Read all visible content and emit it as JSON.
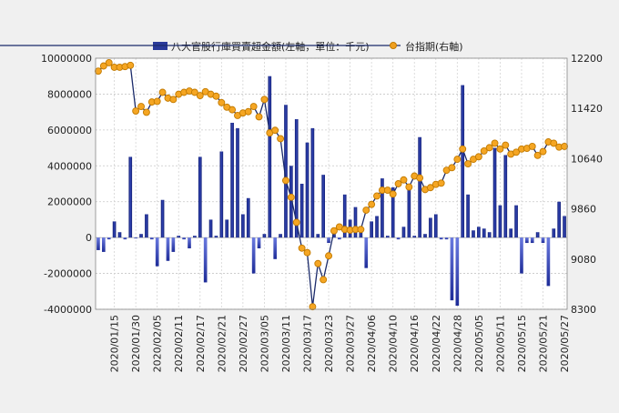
{
  "chart_data": {
    "type": "bar+line",
    "legend": [
      {
        "label": "八大官股行庫買賣超金額(左軸，單位：千元)",
        "kind": "bar",
        "color": "#2a3a9a"
      },
      {
        "label": "台指期(右軸)",
        "kind": "line",
        "color": "#f0a020"
      }
    ],
    "legend_position": "top",
    "grid": true,
    "y_left": {
      "min": -4000000,
      "max": 10000000,
      "ticks": [
        -4000000,
        -2000000,
        0,
        2000000,
        4000000,
        6000000,
        8000000,
        10000000
      ]
    },
    "y_right": {
      "min": 8300,
      "max": 12200,
      "ticks": [
        8300,
        9080,
        9860,
        10640,
        11420,
        12200
      ]
    },
    "x_tick_labels": [
      {
        "index": 3,
        "label": "2020/01/15"
      },
      {
        "index": 7,
        "label": "2020/01/30"
      },
      {
        "index": 11,
        "label": "2020/02/05"
      },
      {
        "index": 15,
        "label": "2020/02/11"
      },
      {
        "index": 19,
        "label": "2020/02/17"
      },
      {
        "index": 23,
        "label": "2020/02/21"
      },
      {
        "index": 27,
        "label": "2020/02/27"
      },
      {
        "index": 31,
        "label": "2020/03/05"
      },
      {
        "index": 35,
        "label": "2020/03/11"
      },
      {
        "index": 39,
        "label": "2020/03/17"
      },
      {
        "index": 43,
        "label": "2020/03/23"
      },
      {
        "index": 47,
        "label": "2020/03/27"
      },
      {
        "index": 51,
        "label": "2020/04/06"
      },
      {
        "index": 55,
        "label": "2020/04/10"
      },
      {
        "index": 59,
        "label": "2020/04/16"
      },
      {
        "index": 63,
        "label": "2020/04/22"
      },
      {
        "index": 67,
        "label": "2020/04/28"
      },
      {
        "index": 71,
        "label": "2020/05/05"
      },
      {
        "index": 75,
        "label": "2020/05/11"
      },
      {
        "index": 79,
        "label": "2020/05/15"
      },
      {
        "index": 83,
        "label": "2020/05/21"
      },
      {
        "index": 87,
        "label": "2020/05/27"
      }
    ],
    "bars": [
      -700000,
      -800000,
      -100000,
      900000,
      300000,
      -100000,
      4500000,
      -50000,
      200000,
      1300000,
      -100000,
      -1600000,
      2100000,
      -1300000,
      -800000,
      100000,
      -100000,
      -600000,
      100000,
      4500000,
      -2500000,
      1000000,
      100000,
      4800000,
      1000000,
      6400000,
      6100000,
      1300000,
      2200000,
      -2000000,
      -600000,
      200000,
      9000000,
      -1200000,
      200000,
      7400000,
      4000000,
      6600000,
      3000000,
      5300000,
      6100000,
      200000,
      3500000,
      -300000,
      200000,
      -100000,
      2400000,
      1000000,
      1700000,
      600000,
      -1700000,
      900000,
      1200000,
      3300000,
      100000,
      2800000,
      -100000,
      600000,
      3000000,
      100000,
      5600000,
      200000,
      1100000,
      1300000,
      -100000,
      -100000,
      -3500000,
      -3800000,
      8500000,
      2400000,
      400000,
      600000,
      500000,
      300000,
      5000000,
      1800000,
      4600000,
      500000,
      1800000,
      -2000000,
      -300000,
      -300000,
      300000,
      -300000,
      -2700000,
      500000,
      2000000,
      1200000
    ],
    "line": [
      12000,
      12080,
      12130,
      12060,
      12060,
      12070,
      12090,
      11380,
      11450,
      11360,
      11520,
      11530,
      11670,
      11580,
      11560,
      11640,
      11670,
      11690,
      11670,
      11620,
      11680,
      11640,
      11610,
      11510,
      11440,
      11400,
      11310,
      11350,
      11370,
      11450,
      11290,
      11560,
      11040,
      11080,
      10950,
      10300,
      10040,
      9650,
      9250,
      9180,
      8340,
      9010,
      8760,
      9130,
      9520,
      9580,
      9540,
      9530,
      9540,
      9540,
      9840,
      9930,
      10060,
      10150,
      10150,
      10090,
      10250,
      10310,
      10200,
      10370,
      10340,
      10160,
      10190,
      10240,
      10260,
      10460,
      10500,
      10630,
      10790,
      10560,
      10630,
      10670,
      10760,
      10810,
      10880,
      10790,
      10850,
      10710,
      10740,
      10790,
      10800,
      10830,
      10690,
      10750,
      10900,
      10880,
      10820,
      10830
    ],
    "n": 88
  }
}
